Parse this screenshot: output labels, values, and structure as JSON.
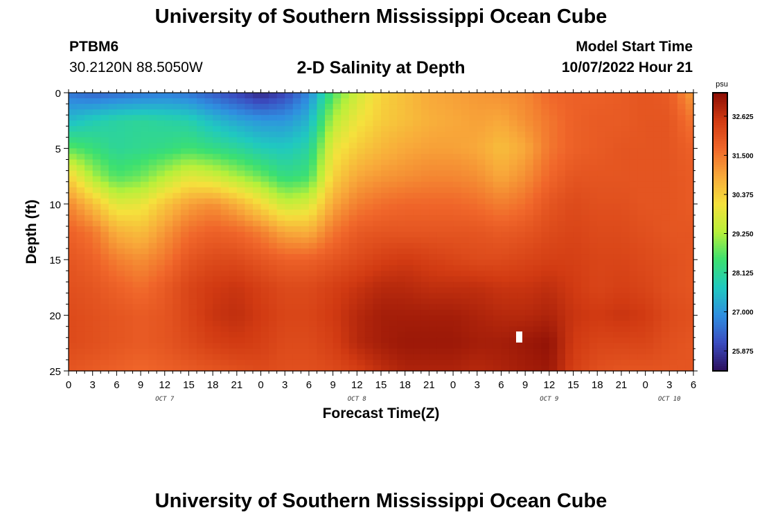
{
  "header": {
    "title": "University of Southern Mississippi Ocean Cube",
    "station": "PTBM6",
    "coords": "30.2120N  88.5050W",
    "plot_title": "2-D Salinity at Depth",
    "model_label": "Model Start Time",
    "model_time": "10/07/2022 Hour 21"
  },
  "footer": {
    "title": "University of Southern Mississippi Ocean Cube"
  },
  "chart_data": {
    "type": "heatmap",
    "title": "2-D Salinity at Depth",
    "xlabel": "Forecast Time(Z)",
    "ylabel": "Depth (ft)",
    "x_ticks": [
      "0",
      "3",
      "6",
      "9",
      "12",
      "15",
      "18",
      "21",
      "0",
      "3",
      "6",
      "9",
      "12",
      "15",
      "18",
      "21",
      "0",
      "3",
      "6",
      "9",
      "12",
      "15",
      "18",
      "21",
      "0",
      "3",
      "6"
    ],
    "day_labels": [
      {
        "label": "OCT 7",
        "hour": 12
      },
      {
        "label": "OCT 8",
        "hour": 36
      },
      {
        "label": "OCT 9",
        "hour": 60
      },
      {
        "label": "OCT 10",
        "hour": 75
      }
    ],
    "x_range_hours": [
      0,
      78
    ],
    "y_ticks": [
      0,
      5,
      10,
      15,
      20,
      25
    ],
    "ylim": [
      0,
      25
    ],
    "y_inverted": true,
    "colorbar": {
      "unit": "psu",
      "ticks": [
        "32.625",
        "31.500",
        "30.375",
        "29.250",
        "28.125",
        "27.000",
        "25.875"
      ],
      "min": 25.3,
      "max": 33.3,
      "palette": [
        "#2d0f5c",
        "#3b4cc0",
        "#2f8fe0",
        "#20c9c0",
        "#3ce070",
        "#b8f03a",
        "#f5e13c",
        "#f8a93a",
        "#f0662a",
        "#d13a12",
        "#8a0d04"
      ]
    },
    "grid": {
      "hours": [
        0,
        3,
        6,
        9,
        12,
        15,
        18,
        21,
        24,
        27,
        30,
        33,
        36,
        39,
        42,
        45,
        48,
        51,
        54,
        57,
        60,
        63,
        66,
        69,
        72,
        75,
        78
      ],
      "depths_ft": [
        0,
        2.5,
        5,
        7.5,
        10,
        12.5,
        15,
        17.5,
        20,
        22.5,
        25
      ],
      "salinity_psu": [
        [
          26.6,
          26.4,
          26.5,
          26.6,
          26.7,
          26.6,
          26.3,
          26.0,
          25.6,
          26.0,
          26.8,
          28.6,
          29.6,
          30.3,
          30.6,
          30.9,
          31.0,
          31.1,
          31.2,
          31.3,
          31.7,
          31.8,
          31.8,
          31.9,
          32.0,
          31.9,
          31.0
        ],
        [
          27.5,
          27.8,
          28.0,
          28.1,
          28.0,
          27.9,
          27.5,
          27.2,
          27.0,
          27.0,
          27.4,
          29.3,
          30.0,
          30.4,
          30.6,
          30.8,
          30.9,
          31.0,
          30.9,
          31.2,
          31.5,
          31.8,
          31.9,
          31.9,
          32.0,
          32.0,
          31.5
        ],
        [
          28.7,
          28.4,
          28.1,
          28.2,
          28.3,
          28.5,
          28.3,
          28.1,
          27.8,
          27.7,
          28.0,
          29.9,
          30.4,
          30.7,
          30.9,
          31.0,
          31.0,
          30.9,
          30.6,
          30.9,
          31.5,
          31.8,
          31.9,
          32.0,
          32.0,
          32.0,
          31.8
        ],
        [
          30.3,
          29.2,
          28.6,
          28.8,
          29.3,
          29.8,
          29.6,
          29.2,
          28.8,
          28.3,
          28.5,
          30.3,
          30.9,
          31.1,
          31.2,
          31.3,
          31.3,
          31.2,
          30.9,
          31.2,
          31.7,
          32.0,
          32.0,
          32.0,
          32.0,
          32.0,
          31.9
        ],
        [
          31.3,
          30.6,
          29.8,
          29.9,
          30.5,
          31.0,
          31.2,
          30.8,
          30.2,
          29.5,
          29.7,
          30.9,
          31.4,
          31.6,
          31.7,
          31.7,
          31.7,
          31.6,
          31.4,
          31.6,
          32.0,
          32.2,
          32.1,
          32.1,
          32.0,
          32.0,
          31.9
        ],
        [
          31.8,
          31.5,
          30.8,
          30.6,
          31.1,
          31.6,
          31.8,
          31.7,
          31.4,
          30.9,
          30.8,
          31.5,
          31.9,
          32.0,
          32.0,
          32.0,
          32.0,
          32.0,
          31.9,
          32.0,
          32.2,
          32.3,
          32.2,
          32.2,
          32.1,
          32.0,
          32.0
        ],
        [
          32.0,
          31.8,
          31.4,
          31.2,
          31.5,
          32.0,
          32.2,
          32.2,
          32.0,
          31.8,
          31.8,
          32.0,
          32.2,
          32.4,
          32.5,
          32.4,
          32.3,
          32.2,
          32.2,
          32.3,
          32.4,
          32.4,
          32.3,
          32.3,
          32.2,
          32.1,
          32.0
        ],
        [
          32.1,
          32.0,
          31.8,
          31.6,
          31.9,
          32.3,
          32.5,
          32.6,
          32.4,
          32.2,
          32.2,
          32.4,
          32.6,
          32.8,
          32.8,
          32.7,
          32.7,
          32.7,
          32.6,
          32.6,
          32.7,
          32.5,
          32.3,
          32.4,
          32.3,
          32.1,
          32.0
        ],
        [
          32.2,
          32.1,
          32.0,
          31.9,
          32.0,
          32.3,
          32.6,
          32.7,
          32.5,
          32.3,
          32.3,
          32.5,
          32.8,
          33.0,
          33.0,
          33.0,
          33.0,
          32.9,
          32.8,
          32.8,
          32.9,
          32.6,
          32.5,
          32.6,
          32.5,
          32.2,
          32.1
        ],
        [
          32.2,
          32.1,
          32.0,
          31.9,
          32.0,
          32.2,
          32.4,
          32.5,
          32.4,
          32.2,
          32.2,
          32.4,
          32.8,
          33.0,
          33.1,
          33.1,
          33.1,
          33.0,
          33.0,
          33.1,
          33.2,
          32.5,
          32.3,
          32.3,
          32.3,
          32.1,
          32.0
        ],
        [
          32.0,
          31.9,
          31.8,
          31.7,
          31.8,
          31.9,
          32.0,
          32.1,
          32.2,
          32.1,
          32.1,
          32.2,
          32.4,
          32.7,
          32.9,
          32.9,
          32.9,
          32.8,
          32.9,
          33.0,
          33.1,
          32.4,
          32.1,
          32.0,
          32.0,
          32.0,
          32.0
        ]
      ]
    }
  }
}
